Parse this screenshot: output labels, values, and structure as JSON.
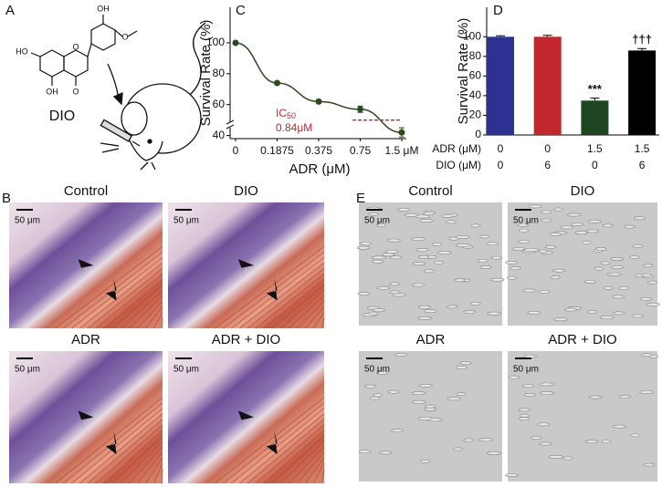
{
  "panel_a": {
    "letter": "A",
    "label": "DIO",
    "structure_labels": [
      "OH",
      "O",
      "HO",
      "O",
      "OH",
      "O"
    ]
  },
  "chart_data": [
    {
      "type": "line",
      "panel": "C",
      "y_label": "Survival Rate (%)",
      "x_label": "ADR (μM)",
      "categories": [
        "0",
        "0.1875",
        "0.375",
        "0.75",
        "1.5 μM"
      ],
      "values": [
        100,
        74,
        62,
        57,
        42
      ],
      "errors": [
        1,
        1,
        1,
        2,
        3
      ],
      "color": "#2d4a1e",
      "ylim": [
        38,
        123
      ],
      "yticks": [
        40,
        60,
        80,
        100
      ],
      "ic_label": "IC",
      "ic_sub": "50",
      "ic_value": "0.84μM",
      "ic_line": 50,
      "ic_color": "#c1272d"
    },
    {
      "type": "bar",
      "panel": "D",
      "y_label": "Survival Rate (%)",
      "values": [
        100,
        100,
        35,
        86
      ],
      "errors": [
        1,
        1.5,
        2.5,
        2
      ],
      "colors": [
        "#2e3192",
        "#c1272d",
        "#1e4620",
        "#000000"
      ],
      "annotations": [
        null,
        null,
        "***",
        "†††"
      ],
      "ylim": [
        0,
        130
      ],
      "yticks": [
        0,
        20,
        40,
        60,
        80,
        100
      ],
      "rows": [
        {
          "name": "ADR (μM)",
          "values": [
            "0",
            "0",
            "1.5",
            "1.5"
          ]
        },
        {
          "name": "DIO (μM)",
          "values": [
            "0",
            "6",
            "0",
            "6"
          ]
        }
      ]
    }
  ],
  "panel_b": {
    "letter": "B",
    "scale": "50 μm",
    "images": [
      "Control",
      "DIO",
      "ADR",
      "ADR + DIO"
    ]
  },
  "panel_e": {
    "letter": "E",
    "scale": "50 μm",
    "images": [
      "Control",
      "DIO",
      "ADR",
      "ADR + DIO"
    ]
  }
}
